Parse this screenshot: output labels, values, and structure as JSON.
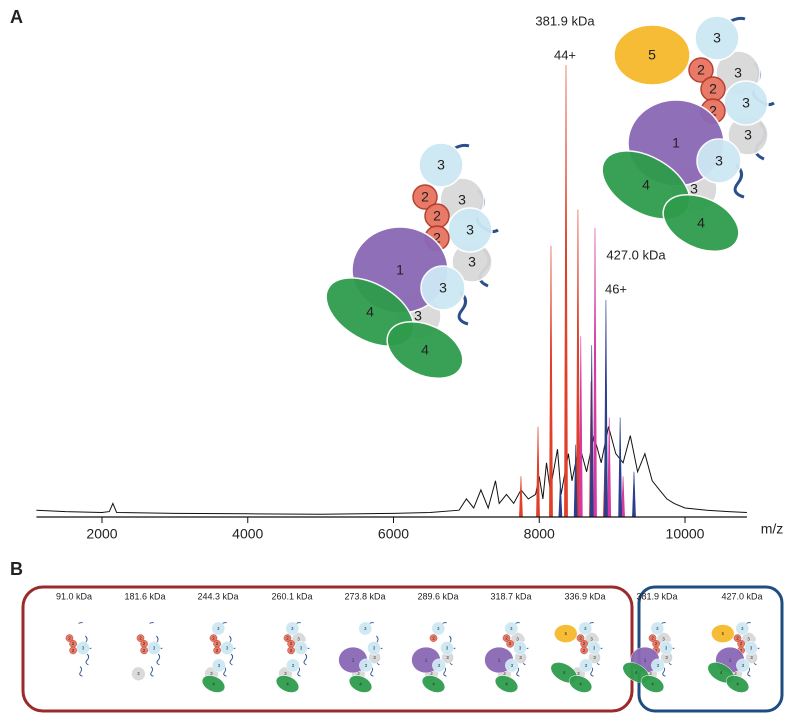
{
  "panel_a_label": "A",
  "panel_b_label": "B",
  "subunit_labels": [
    "1",
    "2",
    "3",
    "4",
    "5"
  ],
  "chart_data": {
    "type": "line",
    "xlabel": "m/z",
    "xlim": [
      1100,
      10850
    ],
    "ylim": [
      0,
      100
    ],
    "xticks": [
      2000,
      4000,
      6000,
      8000,
      10000
    ],
    "annotations": [
      {
        "text": "381.9 kDa"
      },
      {
        "text": "44+"
      },
      {
        "text": "427.0 kDa"
      },
      {
        "text": "46+"
      }
    ],
    "series": [
      {
        "type": "line",
        "color": "#111111",
        "x": [
          1100,
          1500,
          2000,
          2100,
          2150,
          2200,
          3000,
          4000,
          5000,
          6000,
          6500,
          6900,
          7000,
          7100,
          7200,
          7300,
          7400,
          7450,
          7550,
          7650,
          7750,
          7850,
          7950,
          8000,
          8050,
          8100,
          8150,
          8250,
          8300,
          8400,
          8450,
          8550,
          8650,
          8750,
          8850,
          8950,
          9050,
          9150,
          9250,
          9350,
          9450,
          9550,
          9650,
          9750,
          9850,
          10000,
          10300,
          10600,
          10850
        ],
        "values": [
          1.5,
          1.2,
          1.0,
          1.2,
          3,
          1.0,
          0.8,
          0.7,
          0.6,
          0.8,
          1.0,
          1.5,
          4,
          2,
          6,
          2,
          8,
          3,
          5,
          3,
          6,
          4,
          5,
          9,
          4,
          12,
          6,
          15,
          5,
          14,
          8,
          16,
          10,
          18,
          12,
          20,
          14,
          12,
          18,
          10,
          14,
          8,
          6,
          4,
          3,
          2,
          1.5,
          1.2,
          1.0
        ]
      },
      {
        "type": "stick",
        "color": "#e0402a",
        "x": [
          7749,
          7983,
          8161,
          8367,
          8531,
          8710,
          8900
        ],
        "values": [
          9,
          20,
          60,
          100,
          68,
          30,
          12
        ]
      },
      {
        "type": "stick",
        "color": "#d63aa0",
        "x": [
          8570,
          8765,
          8960,
          9150
        ],
        "values": [
          40,
          64,
          22,
          9
        ]
      },
      {
        "type": "stick",
        "color": "#2b3f8c",
        "x": [
          8290,
          8500,
          8720,
          8915,
          9110,
          9300
        ],
        "values": [
          8,
          16,
          38,
          48,
          22,
          10
        ]
      }
    ]
  },
  "panel_b": {
    "complexes": [
      "91.0 kDa",
      "181.6 kDa",
      "244.3 kDa",
      "260.1 kDa",
      "273.8 kDa",
      "289.6 kDa",
      "318.7 kDa",
      "336.9 kDa",
      "381.9 kDa",
      "427.0 kDa"
    ]
  }
}
